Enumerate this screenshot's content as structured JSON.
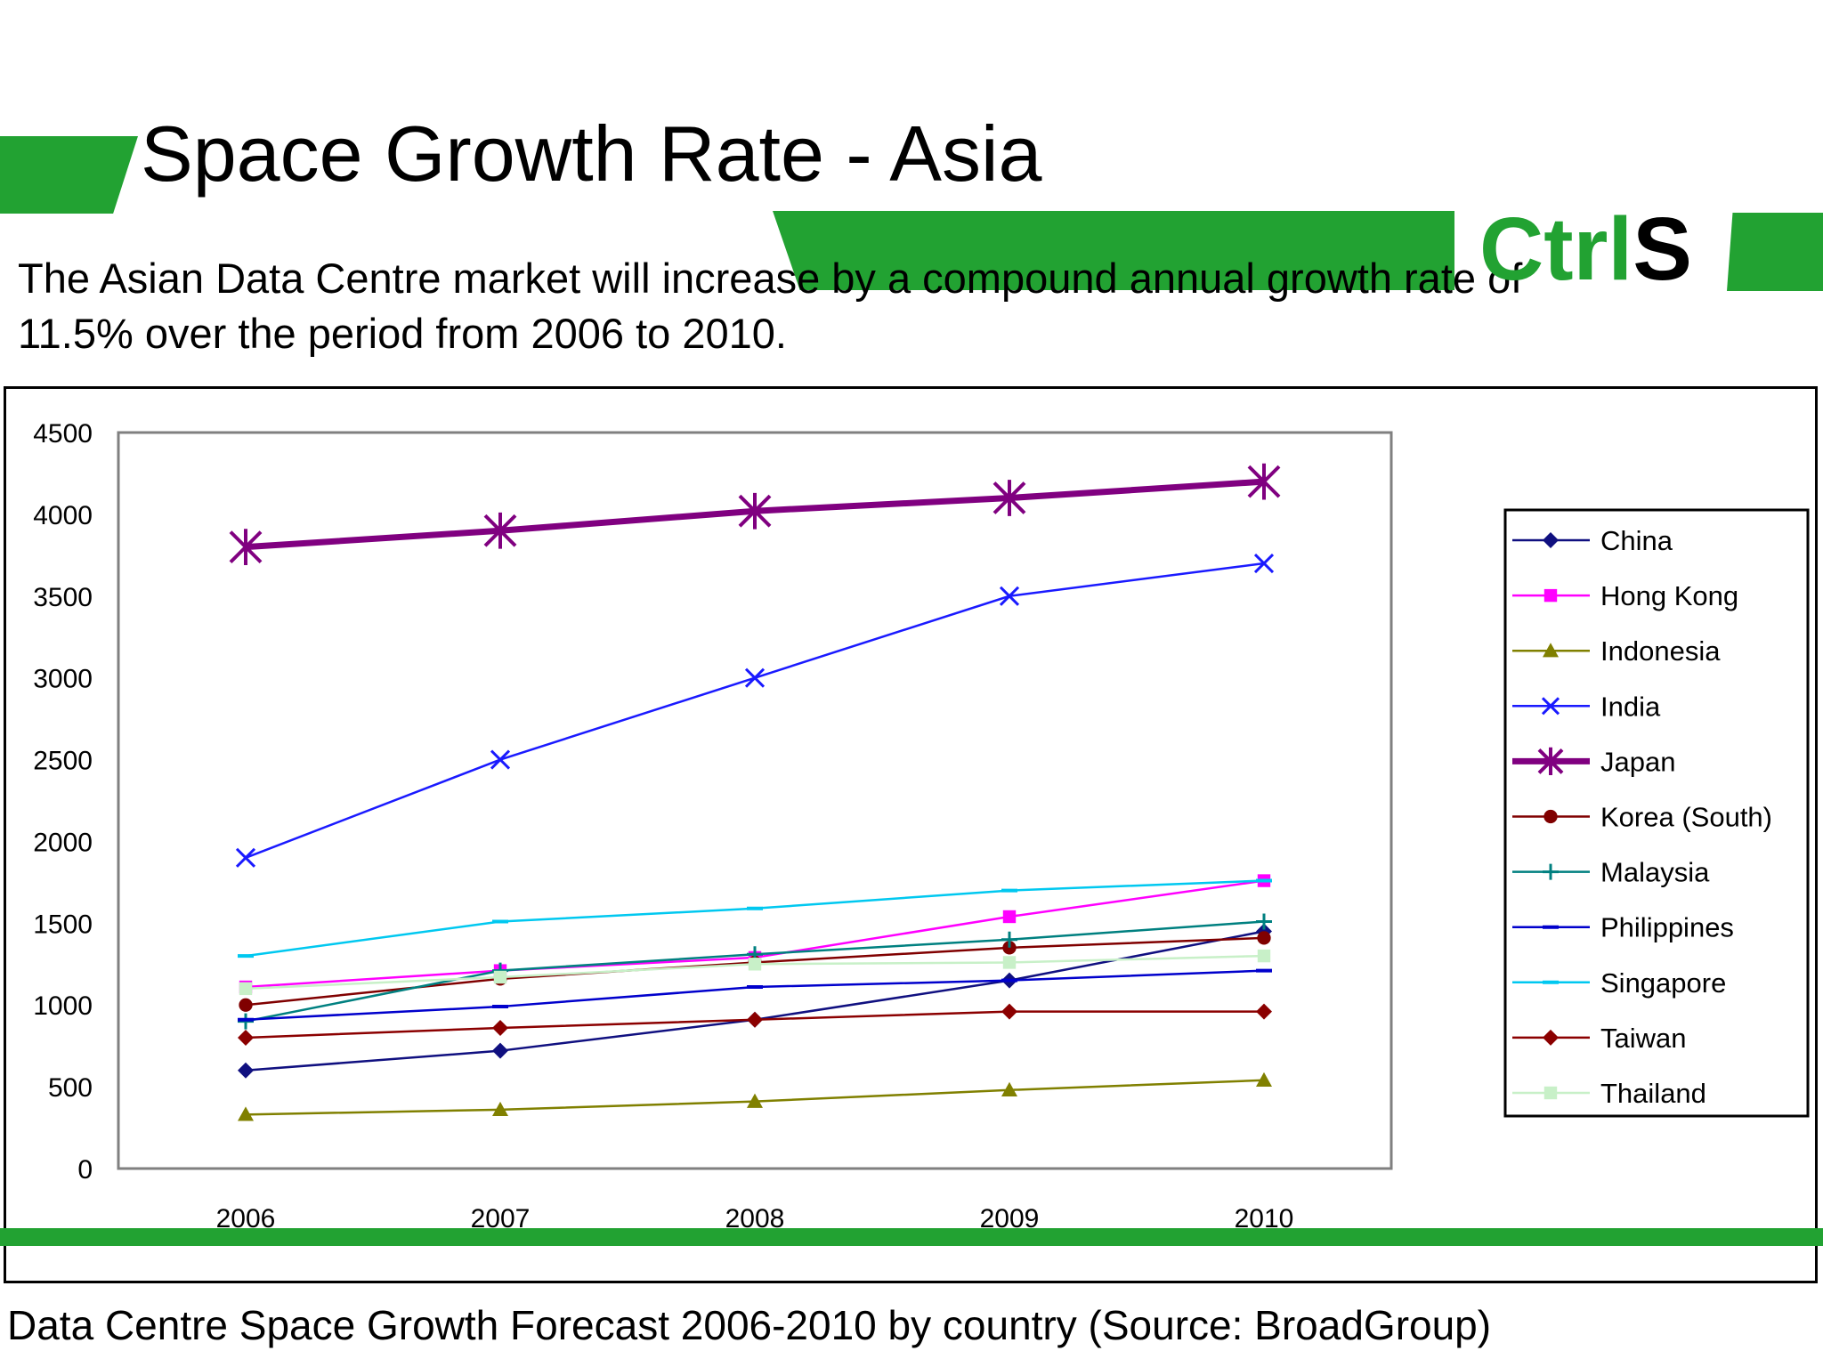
{
  "slide": {
    "title": "Space Growth Rate - Asia",
    "subtitle": "The Asian Data Centre market will increase by a compound annual growth rate of 11.5% over the period from 2006 to 2010.",
    "logo_ctrl": "Ctrl",
    "logo_s": "S",
    "caption": "Data Centre Space Growth Forecast 2006-2010 by country (Source: BroadGroup)",
    "accent_color": "#22a232"
  },
  "chart_data": {
    "type": "line",
    "title": "",
    "xlabel": "",
    "ylabel": "",
    "categories": [
      "2006",
      "2007",
      "2008",
      "2009",
      "2010"
    ],
    "ylim": [
      0,
      4500
    ],
    "yticks": [
      0,
      500,
      1000,
      1500,
      2000,
      2500,
      3000,
      3500,
      4000,
      4500
    ],
    "grid": false,
    "legend_position": "right",
    "series": [
      {
        "name": "China",
        "color": "#101080",
        "marker": "diamond",
        "values": [
          600,
          720,
          910,
          1150,
          1450
        ]
      },
      {
        "name": "Hong Kong",
        "color": "#ff00ff",
        "marker": "square",
        "values": [
          1110,
          1210,
          1290,
          1540,
          1760
        ]
      },
      {
        "name": "Indonesia",
        "color": "#808000",
        "marker": "triangle",
        "values": [
          330,
          360,
          410,
          480,
          540
        ]
      },
      {
        "name": "India",
        "color": "#1a1aff",
        "marker": "x",
        "values": [
          1900,
          2500,
          3000,
          3500,
          3700
        ]
      },
      {
        "name": "Japan",
        "color": "#800080",
        "marker": "asterisk",
        "values": [
          3800,
          3900,
          4020,
          4100,
          4200
        ]
      },
      {
        "name": "Korea (South)",
        "color": "#800000",
        "marker": "circle",
        "values": [
          1000,
          1160,
          1260,
          1350,
          1410
        ]
      },
      {
        "name": "Malaysia",
        "color": "#008080",
        "marker": "plus",
        "values": [
          900,
          1210,
          1310,
          1400,
          1510
        ]
      },
      {
        "name": "Philippines",
        "color": "#0000cc",
        "marker": "dash",
        "values": [
          910,
          990,
          1110,
          1150,
          1210
        ]
      },
      {
        "name": "Singapore",
        "color": "#00c8f0",
        "marker": "dash",
        "values": [
          1300,
          1510,
          1590,
          1700,
          1760
        ]
      },
      {
        "name": "Taiwan",
        "color": "#8b0000",
        "marker": "diamond",
        "values": [
          800,
          860,
          910,
          960,
          960
        ]
      },
      {
        "name": "Thailand",
        "color": "#c8f0c8",
        "marker": "square",
        "values": [
          1100,
          1170,
          1250,
          1260,
          1300
        ]
      }
    ]
  }
}
